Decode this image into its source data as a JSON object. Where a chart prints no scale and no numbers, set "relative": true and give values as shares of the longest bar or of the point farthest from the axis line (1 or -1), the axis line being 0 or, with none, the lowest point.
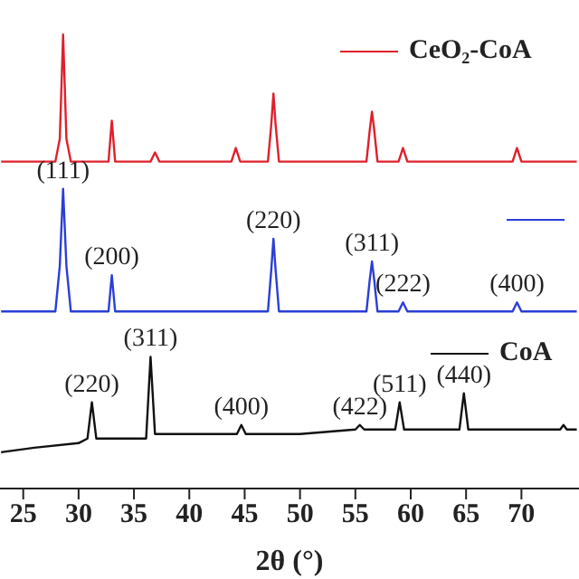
{
  "chart_data": {
    "type": "line",
    "relative": true,
    "xlabel": "2θ (°)",
    "xlim": [
      22.9,
      75.2
    ],
    "xticks": [
      25,
      30,
      35,
      40,
      45,
      50,
      55,
      60,
      65,
      70
    ],
    "legend": "right",
    "grid": false,
    "marker": "none",
    "line_style": "solid",
    "series": [
      {
        "name": "CeO₂-CoA",
        "color": "#e0202c",
        "x": [
          23,
          27.9,
          28.3,
          28.6,
          28.9,
          29.3,
          32.7,
          33.0,
          33.3,
          36.5,
          36.9,
          37.3,
          43.8,
          44.2,
          44.6,
          47.1,
          47.4,
          47.6,
          47.8,
          48.1,
          56.0,
          56.3,
          56.5,
          56.7,
          57.0,
          58.9,
          59.3,
          59.7,
          69.2,
          69.6,
          70.0,
          75
        ],
        "values": [
          0.72,
          0.72,
          0.77,
          1,
          0.77,
          0.72,
          0.72,
          0.81,
          0.72,
          0.72,
          0.74,
          0.72,
          0.72,
          0.75,
          0.72,
          0.72,
          0.8,
          0.87,
          0.8,
          0.72,
          0.72,
          0.79,
          0.83,
          0.79,
          0.72,
          0.72,
          0.75,
          0.72,
          0.72,
          0.75,
          0.72,
          0.72
        ]
      },
      {
        "color": "#2a3ed8",
        "x": [
          23,
          27.9,
          28.3,
          28.6,
          28.9,
          29.3,
          32.7,
          33.0,
          33.3,
          47.1,
          47.4,
          47.6,
          47.8,
          48.1,
          56.0,
          56.3,
          56.5,
          56.7,
          57.0,
          58.9,
          59.3,
          59.7,
          69.2,
          69.6,
          70.0,
          75
        ],
        "values": [
          0.39,
          0.39,
          0.49,
          0.66,
          0.49,
          0.39,
          0.39,
          0.47,
          0.39,
          0.39,
          0.48,
          0.55,
          0.48,
          0.39,
          0.39,
          0.46,
          0.5,
          0.46,
          0.39,
          0.39,
          0.41,
          0.39,
          0.39,
          0.41,
          0.39,
          0.39
        ]
      },
      {
        "name": "CoA",
        "color": "#111111",
        "x": [
          23,
          26,
          30,
          30.8,
          31.2,
          31.6,
          36.1,
          36.5,
          36.9,
          40,
          44.3,
          44.7,
          45.1,
          50,
          55.0,
          55.4,
          55.8,
          58.6,
          59.0,
          59.4,
          64.4,
          64.8,
          65.2,
          70,
          73.5,
          73.8,
          74.1,
          75
        ],
        "values": [
          0.08,
          0.09,
          0.1,
          0.11,
          0.19,
          0.11,
          0.11,
          0.29,
          0.12,
          0.12,
          0.12,
          0.14,
          0.12,
          0.12,
          0.13,
          0.14,
          0.13,
          0.13,
          0.19,
          0.13,
          0.13,
          0.21,
          0.13,
          0.13,
          0.13,
          0.14,
          0.13,
          0.13
        ]
      }
    ],
    "annotations": [
      {
        "text": "(111)",
        "x": 28.6,
        "y": 0.66
      },
      {
        "text": "(200)",
        "x": 33.0,
        "y": 0.47
      },
      {
        "text": "(220)",
        "x": 47.6,
        "y": 0.55
      },
      {
        "text": "(311)",
        "x": 56.5,
        "y": 0.5
      },
      {
        "text": "(222)",
        "x": 59.3,
        "y": 0.41
      },
      {
        "text": "(400)",
        "x": 69.6,
        "y": 0.41
      },
      {
        "text": "(220)",
        "x": 31.2,
        "y": 0.19
      },
      {
        "text": "(311)",
        "x": 36.5,
        "y": 0.29
      },
      {
        "text": "(400)",
        "x": 44.7,
        "y": 0.14
      },
      {
        "text": "(422)",
        "x": 55.4,
        "y": 0.14
      },
      {
        "text": "(511)",
        "x": 59.0,
        "y": 0.19
      },
      {
        "text": "(440)",
        "x": 64.8,
        "y": 0.21
      }
    ]
  }
}
